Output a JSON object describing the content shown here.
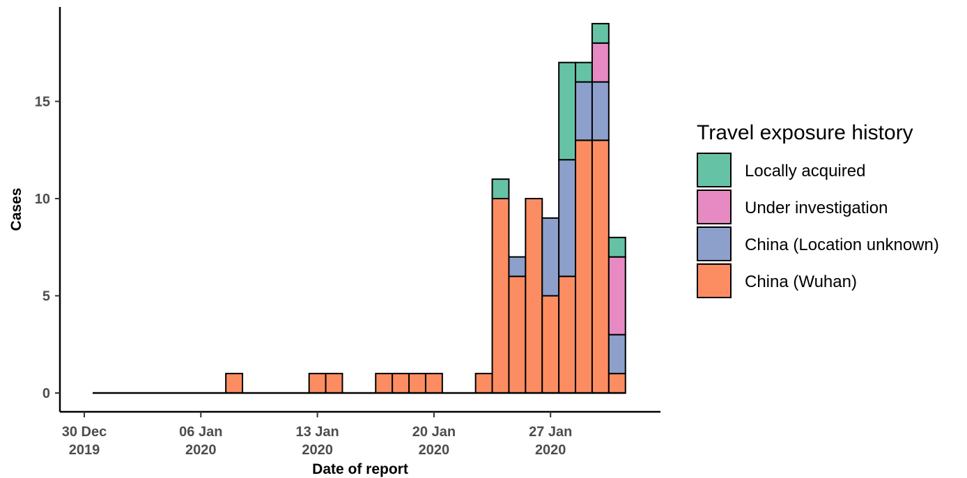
{
  "chart_data": {
    "type": "bar",
    "stacked": true,
    "xlabel": "Date of report",
    "ylabel": "Cases",
    "x_ticks": [
      {
        "date": "2019-12-30",
        "line1": "30 Dec",
        "line2": "2019"
      },
      {
        "date": "2020-01-06",
        "line1": "06 Jan",
        "line2": "2020"
      },
      {
        "date": "2020-01-13",
        "line1": "13 Jan",
        "line2": "2020"
      },
      {
        "date": "2020-01-20",
        "line1": "20 Jan",
        "line2": "2020"
      },
      {
        "date": "2020-01-27",
        "line1": "27 Jan",
        "line2": "2020"
      }
    ],
    "y_ticks": [
      0,
      5,
      10,
      15
    ],
    "ylim": [
      0,
      19
    ],
    "xlim": [
      "2019-12-30",
      "2020-02-01"
    ],
    "grid": false,
    "legend": {
      "title": "Travel exposure history",
      "position": "right"
    },
    "dates": [
      "2019-12-31",
      "2020-01-01",
      "2020-01-02",
      "2020-01-03",
      "2020-01-04",
      "2020-01-05",
      "2020-01-06",
      "2020-01-07",
      "2020-01-08",
      "2020-01-09",
      "2020-01-10",
      "2020-01-11",
      "2020-01-12",
      "2020-01-13",
      "2020-01-14",
      "2020-01-15",
      "2020-01-16",
      "2020-01-17",
      "2020-01-18",
      "2020-01-19",
      "2020-01-20",
      "2020-01-21",
      "2020-01-22",
      "2020-01-23",
      "2020-01-24",
      "2020-01-25",
      "2020-01-26",
      "2020-01-27",
      "2020-01-28",
      "2020-01-29",
      "2020-01-30",
      "2020-01-31",
      "2020-02-01"
    ],
    "series": [
      {
        "name": "China (Wuhan)",
        "color": "#fc8d62",
        "values": [
          0,
          0,
          0,
          0,
          0,
          0,
          0,
          0,
          1,
          0,
          0,
          0,
          0,
          1,
          1,
          0,
          0,
          1,
          1,
          1,
          1,
          0,
          0,
          1,
          10,
          6,
          10,
          5,
          6,
          13,
          13,
          1,
          0
        ]
      },
      {
        "name": "China (Location unknown)",
        "color": "#8da0cb",
        "values": [
          0,
          0,
          0,
          0,
          0,
          0,
          0,
          0,
          0,
          0,
          0,
          0,
          0,
          0,
          0,
          0,
          0,
          0,
          0,
          0,
          0,
          0,
          0,
          0,
          0,
          1,
          0,
          4,
          6,
          3,
          3,
          2,
          0
        ]
      },
      {
        "name": "Under investigation",
        "color": "#e78ac3",
        "values": [
          0,
          0,
          0,
          0,
          0,
          0,
          0,
          0,
          0,
          0,
          0,
          0,
          0,
          0,
          0,
          0,
          0,
          0,
          0,
          0,
          0,
          0,
          0,
          0,
          0,
          0,
          0,
          0,
          0,
          0,
          2,
          4,
          0
        ]
      },
      {
        "name": "Locally acquired",
        "color": "#66c2a5",
        "values": [
          0,
          0,
          0,
          0,
          0,
          0,
          0,
          0,
          0,
          0,
          0,
          0,
          0,
          0,
          0,
          0,
          0,
          0,
          0,
          0,
          0,
          0,
          0,
          0,
          1,
          0,
          0,
          0,
          5,
          1,
          1,
          1,
          0
        ]
      }
    ],
    "legend_order": [
      "Locally acquired",
      "Under investigation",
      "China (Location unknown)",
      "China (Wuhan)"
    ]
  }
}
